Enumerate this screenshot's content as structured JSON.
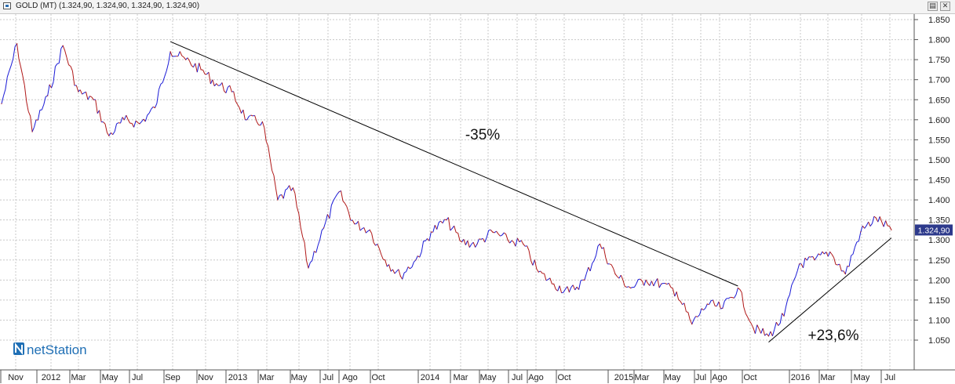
{
  "window": {
    "title": "GOLD (MT) (1.324,90, 1.324,90, 1.324,90, 1.324,90)",
    "restore_icon": "restore-icon",
    "close_icon": "close-icon"
  },
  "brand": {
    "name": "netStation",
    "logo_icon": "netstation-logo-icon",
    "logo_color": "#1f6fb5"
  },
  "colors": {
    "up": "#1a1ad6",
    "down": "#b01818",
    "trendline": "#000000",
    "price_tag_bg": "#2d3a8c",
    "grid": "#c8c8c8"
  },
  "chart_data": {
    "type": "line",
    "title": "",
    "xlabel": "",
    "ylabel": "",
    "ylim": [
      1000,
      1860
    ],
    "grid": true,
    "y_ticks": [
      1050,
      1100,
      1150,
      1200,
      1250,
      1300,
      1350,
      1400,
      1450,
      1500,
      1550,
      1600,
      1650,
      1700,
      1750,
      1800,
      1850
    ],
    "y_tick_labels": [
      "1.050",
      "1.100",
      "1.150",
      "1.200",
      "1.250",
      "1.300",
      "1.350",
      "1.400",
      "1.450",
      "1.500",
      "1.550",
      "1.600",
      "1.650",
      "1.700",
      "1.750",
      "1.800",
      "1.850"
    ],
    "x_tick_labels": [
      "Nov",
      "2012",
      "Mar",
      "May",
      "Jul",
      "Sep",
      "Nov",
      "2013",
      "Mar",
      "May",
      "Jul",
      "Ago",
      "Oct",
      "2014",
      "Mar",
      "May",
      "Jul",
      "Ago",
      "Oct",
      "2015",
      "Mar",
      "May",
      "Jul",
      "Ago",
      "Oct",
      "2016",
      "Mar",
      "May",
      "Jul"
    ],
    "last_price": 1324.9,
    "last_price_label": "1.324,90",
    "series": [
      {
        "x": [
          "2011-10",
          "2011-11",
          "2011-12",
          "2012-01",
          "2012-02",
          "2012-03",
          "2012-04",
          "2012-05",
          "2012-06",
          "2012-07",
          "2012-08",
          "2012-09",
          "2012-10",
          "2012-11",
          "2012-12",
          "2013-01",
          "2013-02",
          "2013-03",
          "2013-04",
          "2013-05",
          "2013-06",
          "2013-07",
          "2013-08",
          "2013-09",
          "2013-10",
          "2013-11",
          "2013-12",
          "2014-01",
          "2014-02",
          "2014-03",
          "2014-04",
          "2014-05",
          "2014-06",
          "2014-07",
          "2014-08",
          "2014-09",
          "2014-10",
          "2014-11",
          "2014-12",
          "2015-01",
          "2015-02",
          "2015-03",
          "2015-04",
          "2015-05",
          "2015-06",
          "2015-07",
          "2015-08",
          "2015-09",
          "2015-10",
          "2015-11",
          "2015-12",
          "2016-01",
          "2016-02",
          "2016-03",
          "2016-04",
          "2016-05",
          "2016-06",
          "2016-07",
          "2016-08"
        ],
        "values": [
          1640,
          1790,
          1570,
          1660,
          1785,
          1670,
          1650,
          1560,
          1600,
          1590,
          1630,
          1770,
          1750,
          1725,
          1690,
          1670,
          1600,
          1595,
          1400,
          1430,
          1230,
          1330,
          1420,
          1340,
          1325,
          1250,
          1210,
          1250,
          1320,
          1350,
          1295,
          1290,
          1320,
          1300,
          1290,
          1220,
          1190,
          1170,
          1200,
          1290,
          1215,
          1180,
          1200,
          1190,
          1170,
          1090,
          1140,
          1130,
          1180,
          1080,
          1060,
          1110,
          1240,
          1250,
          1270,
          1215,
          1320,
          1355,
          1325
        ]
      }
    ],
    "annotations": [
      {
        "text": "-35%",
        "from": [
          "2012-09",
          1795
        ],
        "to": [
          "2015-10",
          1185
        ]
      },
      {
        "text": "+23,6%",
        "from": [
          "2015-12",
          1045
        ],
        "to": [
          "2016-08",
          1305
        ]
      }
    ]
  }
}
